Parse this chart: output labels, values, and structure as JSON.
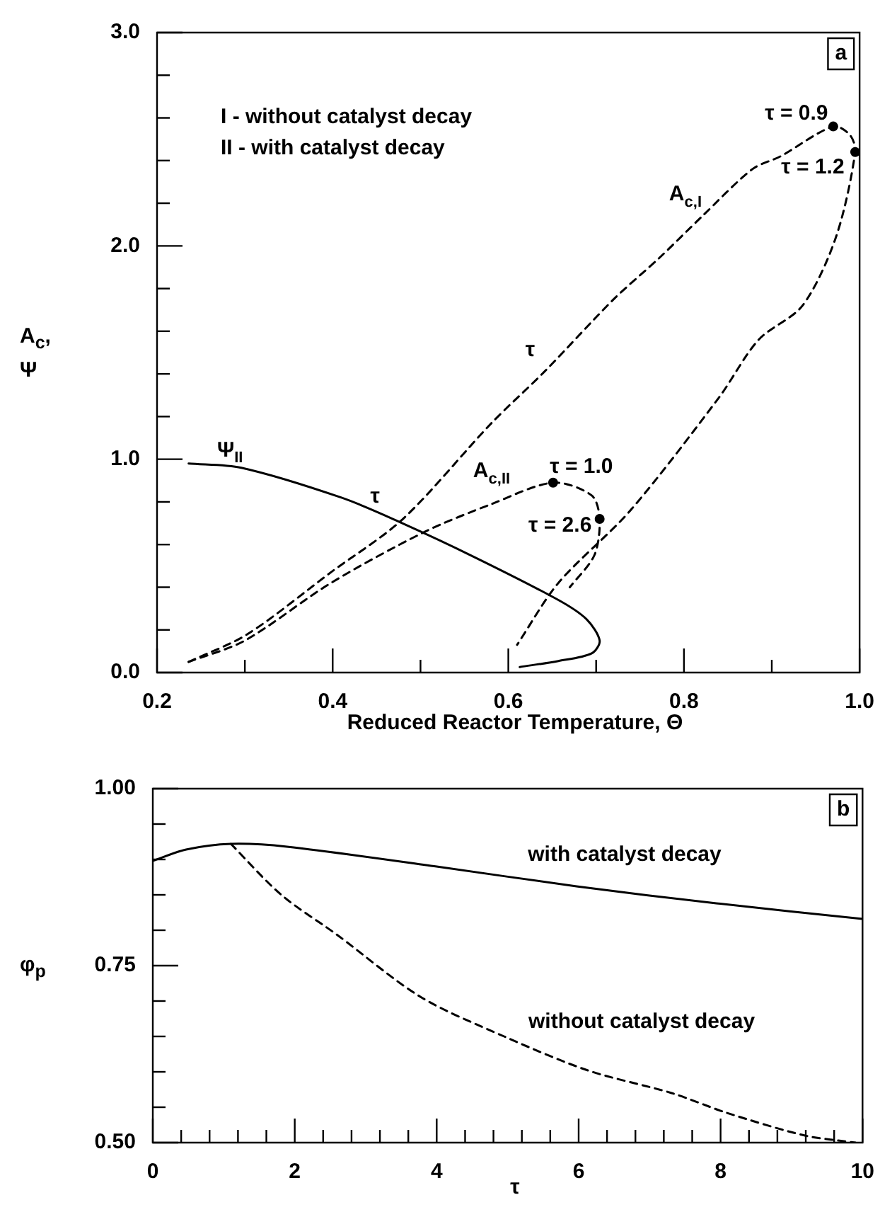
{
  "chart_data": [
    {
      "type": "line",
      "title": "a",
      "xlabel": "Reduced Reactor Temperature, Θ",
      "ylabel": "A$_{c}$, Ψ",
      "xlim": [
        0.2,
        1.0
      ],
      "xticks": [
        {
          "value": 0.2,
          "label": "0.2"
        },
        {
          "value": 0.3,
          "label": null
        },
        {
          "value": 0.4,
          "label": "0.4"
        },
        {
          "value": 0.5,
          "label": null
        },
        {
          "value": 0.6,
          "label": "0.6"
        },
        {
          "value": 0.7,
          "label": null
        },
        {
          "value": 0.8,
          "label": "0.8"
        },
        {
          "value": 0.9,
          "label": null
        },
        {
          "value": 1.0,
          "label": "1.0"
        }
      ],
      "ylim": [
        0,
        3.0
      ],
      "yticks": [
        {
          "value": 0,
          "label": "0.0"
        },
        {
          "value": 0.2,
          "label": null
        },
        {
          "value": 0.4,
          "label": null
        },
        {
          "value": 0.6,
          "label": null
        },
        {
          "value": 0.8,
          "label": null
        },
        {
          "value": 1.0,
          "label": "1.0"
        },
        {
          "value": 1.2,
          "label": null
        },
        {
          "value": 1.4,
          "label": null
        },
        {
          "value": 1.6,
          "label": null
        },
        {
          "value": 1.8,
          "label": null
        },
        {
          "value": 2.0,
          "label": "2.0"
        },
        {
          "value": 2.2,
          "label": null
        },
        {
          "value": 2.4,
          "label": null
        },
        {
          "value": 2.6,
          "label": null
        },
        {
          "value": 2.8,
          "label": null
        },
        {
          "value": 3.0,
          "label": "3.0"
        }
      ],
      "series": [
        {
          "type": "line",
          "name": "A$_{c,I}$",
          "color": "#000000",
          "line_style": "dashed",
          "x": [
            0.236,
            0.303,
            0.398,
            0.48,
            0.581,
            0.641,
            0.72,
            0.771,
            0.821,
            0.878,
            0.91,
            0.97,
            0.989,
            0.995,
            0.973,
            0.935,
            0.885,
            0.84,
            0.739,
            0.657,
            0.61
          ],
          "values": [
            0.05,
            0.18,
            0.47,
            0.72,
            1.17,
            1.41,
            1.75,
            1.94,
            2.14,
            2.36,
            2.42,
            2.56,
            2.52,
            2.44,
            2.04,
            1.72,
            1.56,
            1.29,
            0.76,
            0.42,
            0.13
          ]
        },
        {
          "type": "line",
          "name": "A$_{c,II}$",
          "color": "#000000",
          "line_style": "dashed",
          "x": [
            0.236,
            0.3,
            0.398,
            0.505,
            0.581,
            0.651,
            0.695,
            0.704,
            0.698,
            0.67
          ],
          "values": [
            0.05,
            0.15,
            0.42,
            0.66,
            0.79,
            0.89,
            0.83,
            0.72,
            0.55,
            0.4
          ]
        },
        {
          "type": "line",
          "name": "Ψ$_{II}$",
          "color": "#000000",
          "line_style": "solid",
          "x": [
            0.236,
            0.296,
            0.41,
            0.474,
            0.562,
            0.657,
            0.689,
            0.704,
            0.695,
            0.657,
            0.613
          ],
          "values": [
            0.98,
            0.96,
            0.82,
            0.71,
            0.54,
            0.34,
            0.25,
            0.15,
            0.09,
            0.054,
            0.026
          ]
        },
        {
          "type": "scatter",
          "color": "#000000",
          "marker": "circle",
          "x": [
            0.97,
            0.995,
            0.651,
            0.704
          ],
          "values": [
            2.56,
            2.44,
            0.89,
            0.72
          ]
        }
      ],
      "annotations": [
        "I - without catalyst decay",
        "II - with catalyst decay",
        {
          "text": "τ = 0.9",
          "x": 0.97,
          "y": 2.56
        },
        {
          "text": "τ = 1.2",
          "x": 0.995,
          "y": 2.44
        },
        {
          "text": "τ",
          "x": 0.641,
          "y": 1.41
        },
        {
          "text": "τ",
          "x": 0.474,
          "y": 0.71
        },
        {
          "text": "τ = 1.0",
          "x": 0.651,
          "y": 0.89
        },
        {
          "text": "τ = 2.6",
          "x": 0.704,
          "y": 0.72
        }
      ]
    },
    {
      "type": "line",
      "title": "b",
      "xlabel": "τ",
      "ylabel": "φ$_{p}$",
      "xlim": [
        0,
        10
      ],
      "xticks": [
        {
          "value": 0,
          "label": "0"
        },
        {
          "value": 0.4,
          "label": null
        },
        {
          "value": 0.8,
          "label": null
        },
        {
          "value": 1.2,
          "label": null
        },
        {
          "value": 1.6,
          "label": null
        },
        {
          "value": 2,
          "label": "2"
        },
        {
          "value": 2.4,
          "label": null
        },
        {
          "value": 2.8,
          "label": null
        },
        {
          "value": 3.2,
          "label": null
        },
        {
          "value": 3.6,
          "label": null
        },
        {
          "value": 4,
          "label": "4"
        },
        {
          "value": 4.4,
          "label": null
        },
        {
          "value": 4.8,
          "label": null
        },
        {
          "value": 5.2,
          "label": null
        },
        {
          "value": 5.6,
          "label": null
        },
        {
          "value": 6,
          "label": "6"
        },
        {
          "value": 6.4,
          "label": null
        },
        {
          "value": 6.8,
          "label": null
        },
        {
          "value": 7.2,
          "label": null
        },
        {
          "value": 7.6,
          "label": null
        },
        {
          "value": 8,
          "label": "8"
        },
        {
          "value": 8.4,
          "label": null
        },
        {
          "value": 8.8,
          "label": null
        },
        {
          "value": 9.2,
          "label": null
        },
        {
          "value": 9.6,
          "label": null
        },
        {
          "value": 10,
          "label": "10"
        }
      ],
      "ylim": [
        0.5,
        1.0
      ],
      "yticks": [
        {
          "value": 0.5,
          "label": "0.50"
        },
        {
          "value": 0.55,
          "label": null
        },
        {
          "value": 0.6,
          "label": null
        },
        {
          "value": 0.65,
          "label": null
        },
        {
          "value": 0.7,
          "label": null
        },
        {
          "value": 0.75,
          "label": "0.75"
        },
        {
          "value": 0.8,
          "label": null
        },
        {
          "value": 0.85,
          "label": null
        },
        {
          "value": 0.9,
          "label": null
        },
        {
          "value": 0.95,
          "label": null
        },
        {
          "value": 1.0,
          "label": "1.00"
        }
      ],
      "series": [
        {
          "type": "line",
          "name": "with catalyst decay",
          "color": "#000000",
          "line_style": "solid",
          "x": [
            0,
            0.47,
            1.1,
            1.89,
            4,
            5.97,
            7.94,
            10
          ],
          "values": [
            0.898,
            0.914,
            0.922,
            0.918,
            0.89,
            0.862,
            0.838,
            0.816
          ]
        },
        {
          "type": "line",
          "name": "without catalyst decay",
          "color": "#000000",
          "line_style": "dashed",
          "x": [
            1.1,
            1.81,
            2.59,
            3.77,
            4.95,
            6.13,
            7.31,
            8.09,
            9.19,
            9.9
          ],
          "values": [
            0.922,
            0.85,
            0.794,
            0.706,
            0.65,
            0.602,
            0.57,
            0.542,
            0.51,
            0.5
          ]
        }
      ]
    }
  ]
}
